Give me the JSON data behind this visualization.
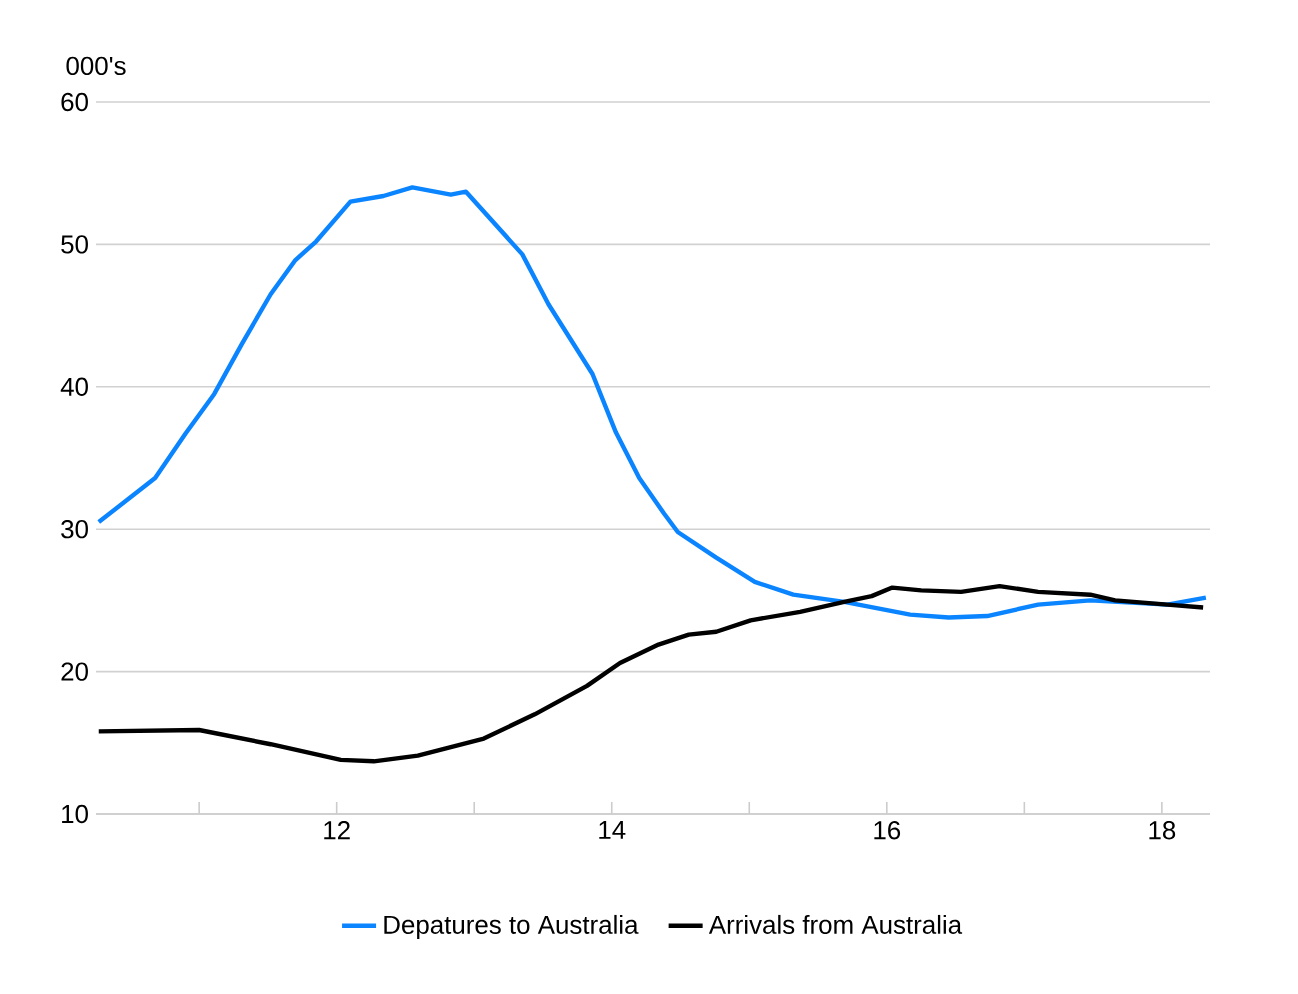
{
  "chart_data": {
    "type": "line",
    "ylabel": "000's",
    "xlim": [
      10.25,
      18.35
    ],
    "ylim": [
      10,
      60
    ],
    "xticks": [
      {
        "value": 11,
        "label": null
      },
      12,
      {
        "value": 13,
        "label": null
      },
      14,
      {
        "value": 15,
        "label": null
      },
      16,
      {
        "value": 17,
        "label": null
      },
      18
    ],
    "yticks": [
      10,
      20,
      30,
      40,
      50,
      60
    ],
    "grid": "y",
    "legend": "bottom",
    "series": [
      {
        "name": "Depatures to Australia",
        "color": "#0a84ff",
        "x": [
          10.27,
          10.68,
          10.9,
          11.11,
          11.31,
          11.52,
          11.7,
          11.85,
          12.1,
          12.34,
          12.55,
          12.83,
          12.94,
          13.35,
          13.54,
          13.86,
          14.03,
          14.2,
          14.38,
          14.48,
          14.76,
          15.04,
          15.32,
          15.69,
          16.17,
          16.45,
          16.73,
          17.1,
          17.48,
          18.04,
          18.32
        ],
        "values": [
          30.5,
          33.6,
          36.7,
          39.5,
          43.0,
          46.5,
          48.9,
          50.2,
          53.0,
          53.4,
          54.0,
          53.5,
          53.7,
          49.3,
          45.8,
          40.9,
          36.8,
          33.6,
          31.1,
          29.8,
          28.0,
          26.3,
          25.4,
          24.9,
          24.0,
          23.8,
          23.9,
          24.7,
          25.0,
          24.7,
          25.2
        ]
      },
      {
        "name": "Arrivals from Australia",
        "color": "#000000",
        "x": [
          10.27,
          11.0,
          11.52,
          12.03,
          12.27,
          12.59,
          13.07,
          13.44,
          13.82,
          14.06,
          14.34,
          14.56,
          14.76,
          15.01,
          15.37,
          15.69,
          15.89,
          16.04,
          16.25,
          16.54,
          16.82,
          17.1,
          17.48,
          17.66,
          18.04,
          18.3
        ],
        "values": [
          15.8,
          15.9,
          14.9,
          13.8,
          13.7,
          14.1,
          15.3,
          17.0,
          19.0,
          20.6,
          21.9,
          22.6,
          22.8,
          23.6,
          24.2,
          24.9,
          25.3,
          25.9,
          25.7,
          25.6,
          26.0,
          25.6,
          25.4,
          25.0,
          24.7,
          24.5
        ]
      }
    ]
  }
}
